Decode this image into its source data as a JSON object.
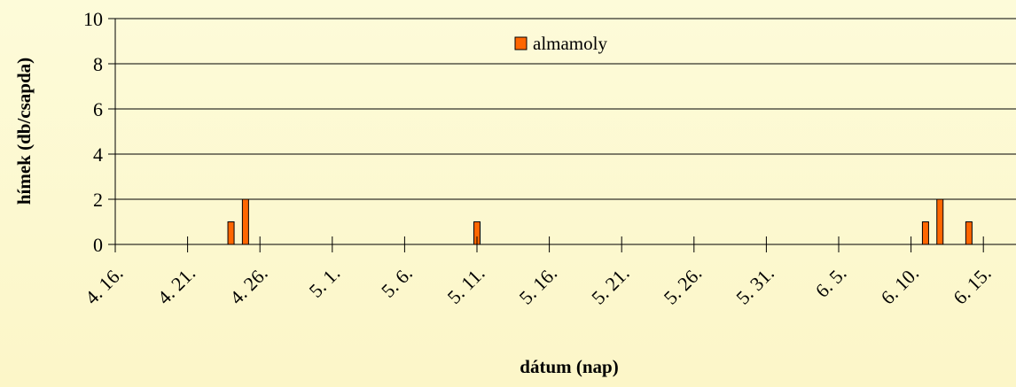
{
  "chart_data": {
    "type": "bar",
    "title": "",
    "xlabel": "dátum (nap)",
    "ylabel": "hímek (db/csapda)",
    "ylim": [
      0,
      10
    ],
    "yticks": [
      "0",
      "2",
      "4",
      "6",
      "8",
      "10"
    ],
    "xticks": [
      "4. 16.",
      "4. 21.",
      "4. 26.",
      "5. 1.",
      "5. 6.",
      "5. 11.",
      "5. 16.",
      "5. 21.",
      "5. 26.",
      "5. 31.",
      "6. 5.",
      "6. 10.",
      "6. 15."
    ],
    "grid": true,
    "legend_position": "top-center",
    "series": [
      {
        "name": "almamoly",
        "color": "#ff6600",
        "points": [
          {
            "date": "4. 24.",
            "value": 1
          },
          {
            "date": "4. 25.",
            "value": 2
          },
          {
            "date": "5. 11.",
            "value": 1
          },
          {
            "date": "6. 11.",
            "value": 1
          },
          {
            "date": "6. 12.",
            "value": 2
          },
          {
            "date": "6. 14.",
            "value": 1
          }
        ]
      }
    ]
  }
}
